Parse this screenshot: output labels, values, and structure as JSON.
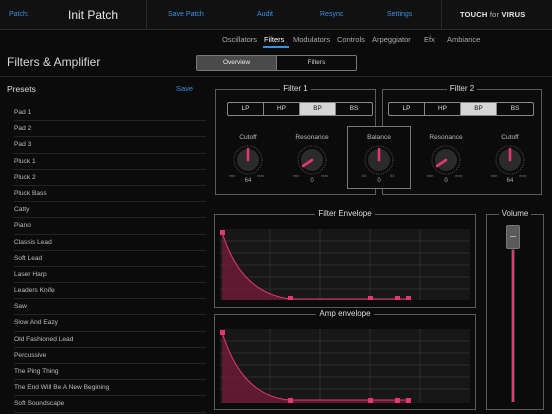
{
  "topbar": {
    "patch_label": "Patch:",
    "patch_name": "Init Patch",
    "save_patch": "Save Patch",
    "audit": "Audit",
    "resync": "Resync",
    "settings": "Settings",
    "logo_touch": "TOUCH",
    "logo_for": "for",
    "logo_virus": "VIRUS"
  },
  "nav": {
    "items": [
      "Oscillators",
      "Filters",
      "Modulators",
      "Controls",
      "Arpeggiator",
      "Efx",
      "Ambiance"
    ],
    "active": "Filters"
  },
  "page": {
    "title": "Filters & Amplifier",
    "segments": [
      "Overview",
      "Filters"
    ],
    "active_segment": "Overview"
  },
  "presets": {
    "title": "Presets",
    "save": "Save",
    "items": [
      "Pad 1",
      "Pad 2",
      "Pad 3",
      "Pluck 1",
      "Pluck 2",
      "Pluck Bass",
      "Catty",
      "Piano",
      "Classis Lead",
      "Soft Lead",
      "Laser Harp",
      "Leaders Knife",
      "Saw",
      "Slow And Eazy",
      "Old Fashioned Lead",
      "Percussive",
      "The Ping Thing",
      "The End Will Be A New Begining",
      "Soft Soundscape"
    ]
  },
  "filter1": {
    "title": "Filter 1",
    "types": [
      "LP",
      "HP",
      "BP",
      "BS"
    ],
    "active_type": "BP",
    "cutoff": {
      "label": "Cutoff",
      "value": "64",
      "min": "min",
      "max": "max"
    },
    "resonance": {
      "label": "Resonance",
      "value": "0",
      "min": "min",
      "max": "max"
    }
  },
  "balance": {
    "label": "Balance",
    "value": "0",
    "left": "64",
    "right": "63"
  },
  "filter2": {
    "title": "Filter 2",
    "types": [
      "LP",
      "HP",
      "BP",
      "BS"
    ],
    "active_type": "BP",
    "resonance": {
      "label": "Resonance",
      "value": "0",
      "min": "min",
      "max": "max"
    },
    "cutoff": {
      "label": "Cutoff",
      "value": "64",
      "min": "min",
      "max": "max"
    }
  },
  "filter_envelope": {
    "title": "Filter Envelope"
  },
  "amp_envelope": {
    "title": "Amp envelope"
  },
  "volume": {
    "title": "Volume"
  },
  "colors": {
    "accent": "#3b8fe0",
    "envelope": "#e3386f"
  }
}
